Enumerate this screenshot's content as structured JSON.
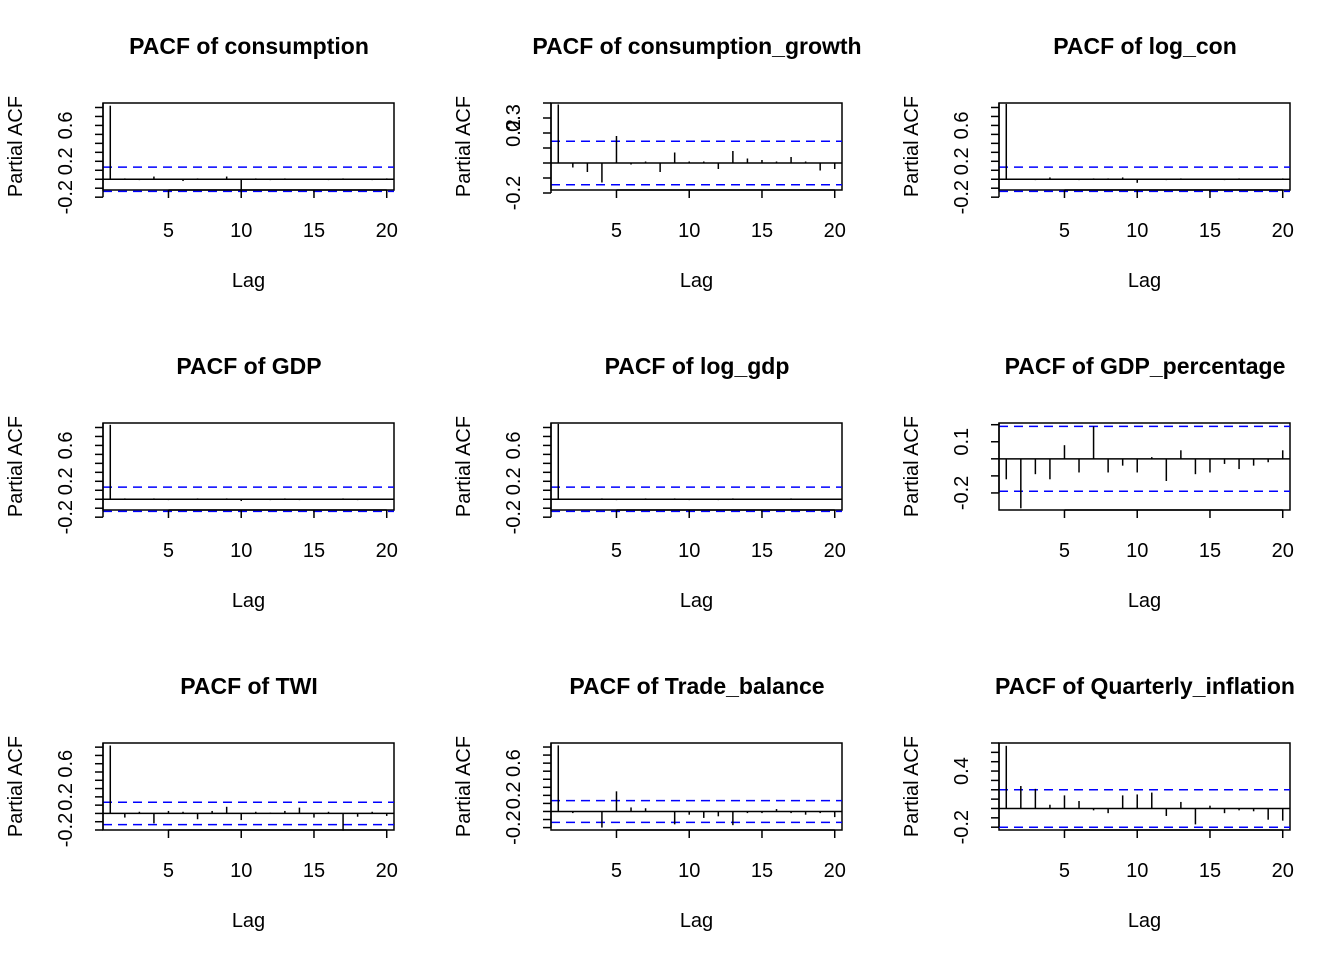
{
  "chart_data": [
    {
      "type": "bar",
      "title": "PACF of consumption",
      "xlabel": "Lag",
      "ylabel": "Partial ACF",
      "xticks": [
        5,
        10,
        15,
        20
      ],
      "yticks": [
        -0.2,
        0.2,
        0.6
      ],
      "ytick_labels": [
        "-0.2",
        "0.2",
        "0.6"
      ],
      "xlim": [
        0.5,
        20.5
      ],
      "ylim": [
        -0.12,
        0.85
      ],
      "ci": 0.135,
      "lags": [
        1,
        2,
        3,
        4,
        5,
        6,
        7,
        8,
        9,
        10,
        11,
        12,
        13,
        14,
        15,
        16,
        17,
        18,
        19,
        20
      ],
      "values": [
        0.82,
        0.01,
        -0.01,
        0.03,
        0.0,
        -0.02,
        0.01,
        0.0,
        0.03,
        -0.12,
        0.01,
        -0.01,
        0.01,
        0.0,
        0.0,
        -0.01,
        0.01,
        0.0,
        -0.01,
        0.01
      ]
    },
    {
      "type": "bar",
      "title": "PACF of consumption_growth",
      "xlabel": "Lag",
      "ylabel": "Partial ACF",
      "xticks": [
        5,
        10,
        15,
        20
      ],
      "yticks": [
        -0.2,
        0.2,
        0.3
      ],
      "ytick_labels": [
        "-0.2",
        "0.2",
        "0.3"
      ],
      "xlim": [
        0.5,
        20.5
      ],
      "ylim": [
        -0.18,
        0.4
      ],
      "ci": 0.145,
      "lags": [
        1,
        2,
        3,
        4,
        5,
        6,
        7,
        8,
        9,
        10,
        11,
        12,
        13,
        14,
        15,
        16,
        17,
        18,
        19,
        20
      ],
      "values": [
        0.39,
        -0.03,
        -0.06,
        -0.13,
        0.18,
        -0.01,
        0.01,
        -0.06,
        0.07,
        0.01,
        0.01,
        -0.04,
        0.08,
        0.03,
        0.02,
        0.01,
        0.04,
        0.01,
        -0.05,
        -0.04
      ]
    },
    {
      "type": "bar",
      "title": "PACF of log_con",
      "xlabel": "Lag",
      "ylabel": "Partial ACF",
      "xticks": [
        5,
        10,
        15,
        20
      ],
      "yticks": [
        -0.2,
        0.2,
        0.6
      ],
      "ytick_labels": [
        "-0.2",
        "0.2",
        "0.6"
      ],
      "xlim": [
        0.5,
        20.5
      ],
      "ylim": [
        -0.12,
        0.85
      ],
      "ci": 0.135,
      "lags": [
        1,
        2,
        3,
        4,
        5,
        6,
        7,
        8,
        9,
        10,
        11,
        12,
        13,
        14,
        15,
        16,
        17,
        18,
        19,
        20
      ],
      "values": [
        0.84,
        0.0,
        -0.01,
        0.02,
        0.0,
        -0.01,
        0.01,
        0.01,
        0.02,
        -0.04,
        0.0,
        -0.01,
        0.01,
        0.0,
        0.0,
        -0.01,
        0.01,
        0.0,
        0.0,
        0.01
      ]
    },
    {
      "type": "bar",
      "title": "PACF of GDP",
      "xlabel": "Lag",
      "ylabel": "Partial ACF",
      "xticks": [
        5,
        10,
        15,
        20
      ],
      "yticks": [
        -0.2,
        0.2,
        0.6
      ],
      "ytick_labels": [
        "-0.2",
        "0.2",
        "0.6"
      ],
      "xlim": [
        0.5,
        20.5
      ],
      "ylim": [
        -0.12,
        0.85
      ],
      "ci": 0.135,
      "lags": [
        1,
        2,
        3,
        4,
        5,
        6,
        7,
        8,
        9,
        10,
        11,
        12,
        13,
        14,
        15,
        16,
        17,
        18,
        19,
        20
      ],
      "values": [
        0.83,
        0.01,
        0.0,
        0.01,
        -0.01,
        0.0,
        0.01,
        0.0,
        0.01,
        -0.02,
        0.0,
        -0.01,
        0.01,
        -0.01,
        0.0,
        0.0,
        0.01,
        -0.01,
        0.0,
        0.0
      ]
    },
    {
      "type": "bar",
      "title": "PACF of log_gdp",
      "xlabel": "Lag",
      "ylabel": "Partial ACF",
      "xticks": [
        5,
        10,
        15,
        20
      ],
      "yticks": [
        -0.2,
        0.2,
        0.6
      ],
      "ytick_labels": [
        "-0.2",
        "0.2",
        "0.6"
      ],
      "xlim": [
        0.5,
        20.5
      ],
      "ylim": [
        -0.12,
        0.85
      ],
      "ci": 0.135,
      "lags": [
        1,
        2,
        3,
        4,
        5,
        6,
        7,
        8,
        9,
        10,
        11,
        12,
        13,
        14,
        15,
        16,
        17,
        18,
        19,
        20
      ],
      "values": [
        0.84,
        0.0,
        0.0,
        0.01,
        -0.01,
        0.0,
        0.01,
        0.0,
        0.01,
        -0.01,
        0.0,
        -0.01,
        0.01,
        0.0,
        0.0,
        0.0,
        0.01,
        0.0,
        0.0,
        0.0
      ]
    },
    {
      "type": "bar",
      "title": "PACF of GDP_percentage",
      "xlabel": "Lag",
      "ylabel": "Partial ACF",
      "xticks": [
        5,
        10,
        15,
        20
      ],
      "yticks": [
        -0.2,
        0.1
      ],
      "ytick_labels": [
        "-0.2",
        "0.1"
      ],
      "xlim": [
        0.5,
        20.5
      ],
      "ylim": [
        -0.3,
        0.21
      ],
      "ci": 0.19,
      "lags": [
        1,
        2,
        3,
        4,
        5,
        6,
        7,
        8,
        9,
        10,
        11,
        12,
        13,
        14,
        15,
        16,
        17,
        18,
        19,
        20
      ],
      "values": [
        -0.12,
        -0.29,
        -0.09,
        -0.12,
        0.08,
        -0.08,
        0.19,
        -0.08,
        -0.04,
        -0.08,
        0.01,
        -0.13,
        0.05,
        -0.09,
        -0.08,
        -0.03,
        -0.06,
        -0.04,
        -0.02,
        0.05
      ]
    },
    {
      "type": "bar",
      "title": "PACF of TWI",
      "xlabel": "Lag",
      "ylabel": "Partial ACF",
      "xticks": [
        5,
        10,
        15,
        20
      ],
      "yticks": [
        -0.2,
        0.2,
        0.6
      ],
      "ytick_labels": [
        "-0.2",
        "0.2",
        "0.6"
      ],
      "xlim": [
        0.5,
        20.5
      ],
      "ylim": [
        -0.2,
        0.85
      ],
      "ci": 0.135,
      "lags": [
        1,
        2,
        3,
        4,
        5,
        6,
        7,
        8,
        9,
        10,
        11,
        12,
        13,
        14,
        15,
        16,
        17,
        18,
        19,
        20
      ],
      "values": [
        0.82,
        -0.05,
        0.02,
        -0.12,
        0.03,
        0.02,
        -0.07,
        0.03,
        0.08,
        -0.08,
        0.02,
        0.01,
        0.03,
        0.07,
        -0.05,
        0.02,
        -0.21,
        -0.04,
        0.02,
        -0.03
      ]
    },
    {
      "type": "bar",
      "title": "PACF of Trade_balance",
      "xlabel": "Lag",
      "ylabel": "Partial ACF",
      "xticks": [
        5,
        10,
        15,
        20
      ],
      "yticks": [
        -0.2,
        0.2,
        0.6
      ],
      "ytick_labels": [
        "-0.2",
        "0.2",
        "0.6"
      ],
      "xlim": [
        0.5,
        20.5
      ],
      "ylim": [
        -0.23,
        0.85
      ],
      "ci": 0.135,
      "lags": [
        1,
        2,
        3,
        4,
        5,
        6,
        7,
        8,
        9,
        10,
        11,
        12,
        13,
        14,
        15,
        16,
        17,
        18,
        19,
        20
      ],
      "values": [
        0.82,
        -0.02,
        0.0,
        -0.2,
        0.25,
        0.05,
        0.04,
        0.0,
        -0.16,
        -0.04,
        -0.08,
        -0.06,
        -0.17,
        -0.02,
        -0.02,
        0.03,
        -0.02,
        -0.04,
        -0.02,
        -0.07
      ]
    },
    {
      "type": "bar",
      "title": "PACF of Quarterly_inflation",
      "xlabel": "Lag",
      "ylabel": "Partial ACF",
      "xticks": [
        5,
        10,
        15,
        20
      ],
      "yticks": [
        -0.2,
        0.4
      ],
      "ytick_labels": [
        "-0.2",
        "0.4"
      ],
      "xlim": [
        0.5,
        20.5
      ],
      "ylim": [
        -0.23,
        0.7
      ],
      "ci": 0.2,
      "lags": [
        1,
        2,
        3,
        4,
        5,
        6,
        7,
        8,
        9,
        10,
        11,
        12,
        13,
        14,
        15,
        16,
        17,
        18,
        19,
        20
      ],
      "values": [
        0.67,
        0.24,
        0.21,
        0.04,
        0.14,
        0.08,
        -0.02,
        -0.05,
        0.14,
        0.15,
        0.17,
        -0.08,
        0.07,
        -0.17,
        0.03,
        -0.05,
        -0.02,
        -0.03,
        -0.12,
        -0.13
      ]
    }
  ]
}
